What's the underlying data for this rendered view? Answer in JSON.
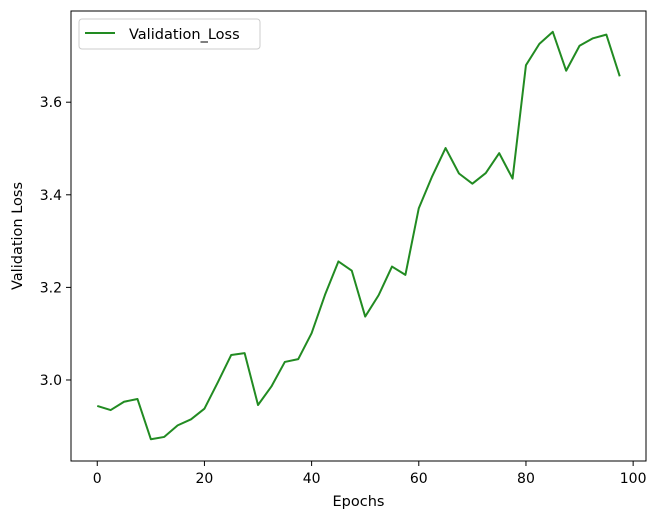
{
  "chart_data": {
    "type": "line",
    "title": "",
    "xlabel": "Epochs",
    "ylabel": "Validation Loss",
    "xlim": [
      -4.9,
      102.4
    ],
    "ylim": [
      2.825,
      3.797
    ],
    "xticks": [
      0,
      20,
      40,
      60,
      80,
      100
    ],
    "yticks": [
      3.0,
      3.2,
      3.4,
      3.6
    ],
    "xtick_labels": [
      "0",
      "20",
      "40",
      "60",
      "80",
      "100"
    ],
    "ytick_labels": [
      "3.0",
      "3.2",
      "3.4",
      "3.6"
    ],
    "grid": false,
    "legend": {
      "position": "top-left"
    },
    "colors": {
      "line": "#228b22",
      "axes": "#000000",
      "background": "#ffffff"
    },
    "series": [
      {
        "name": "Validation_Loss",
        "x": [
          0,
          2.5,
          5,
          7.5,
          10,
          12.5,
          15,
          17.5,
          20,
          22.5,
          25,
          27.5,
          30,
          32.5,
          35,
          37.5,
          40,
          42.5,
          45,
          47.5,
          50,
          52.5,
          55,
          57.5,
          60,
          62.5,
          65,
          67.5,
          70,
          72.5,
          75,
          77.5,
          80,
          82.5,
          85,
          87.5,
          90,
          92.5,
          95,
          97.5
        ],
        "y": [
          2.944,
          2.935,
          2.953,
          2.959,
          2.872,
          2.877,
          2.902,
          2.915,
          2.938,
          2.995,
          3.054,
          3.058,
          2.946,
          2.986,
          3.039,
          3.045,
          3.101,
          3.184,
          3.256,
          3.236,
          3.137,
          3.183,
          3.245,
          3.227,
          3.371,
          3.44,
          3.501,
          3.446,
          3.424,
          3.447,
          3.49,
          3.435,
          3.68,
          3.726,
          3.752,
          3.668,
          3.722,
          3.738,
          3.746,
          3.656
        ]
      }
    ]
  }
}
